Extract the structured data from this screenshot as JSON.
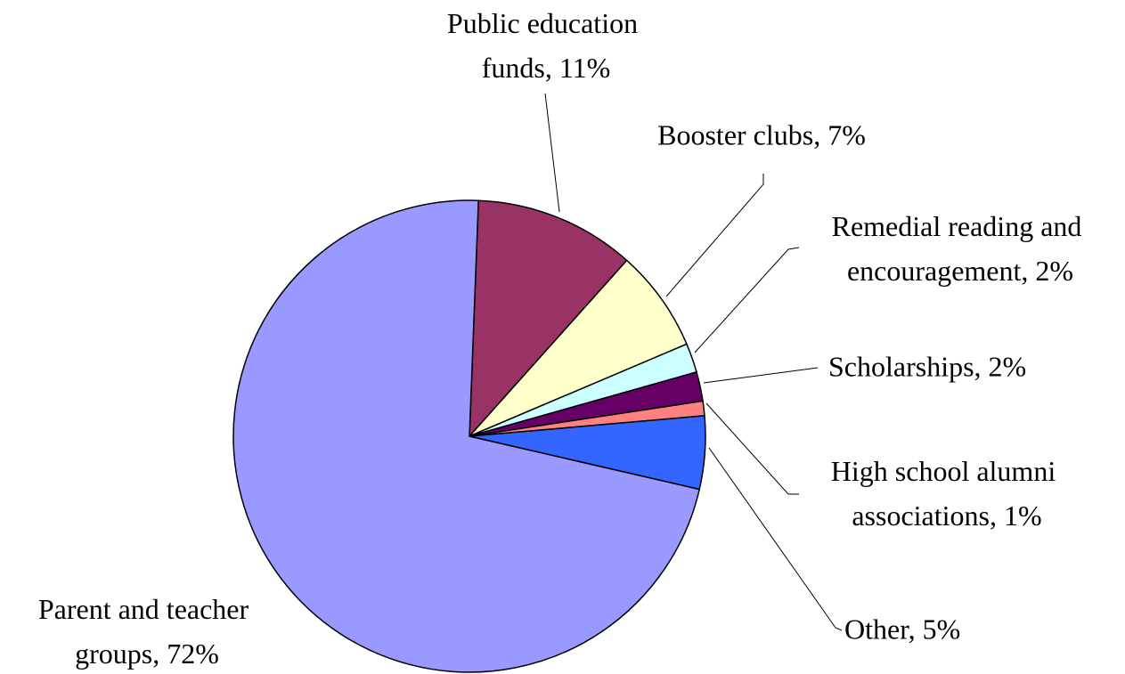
{
  "chart_data": {
    "type": "pie",
    "values": [
      11,
      7,
      2,
      2,
      1,
      5,
      72
    ],
    "value_labels": [
      "Public education funds, 11%",
      "Booster clubs, 7%",
      "Remedial reading and encouragement, 2%",
      "Scholarships, 2%",
      "High school alumni associations, 1%",
      "Other, 5%",
      "Parent and teacher groups, 72%"
    ],
    "colors": [
      "#993366",
      "#ffffcc",
      "#ccffff",
      "#660066",
      "#ff8080",
      "#3366ff",
      "#9999ff"
    ]
  }
}
